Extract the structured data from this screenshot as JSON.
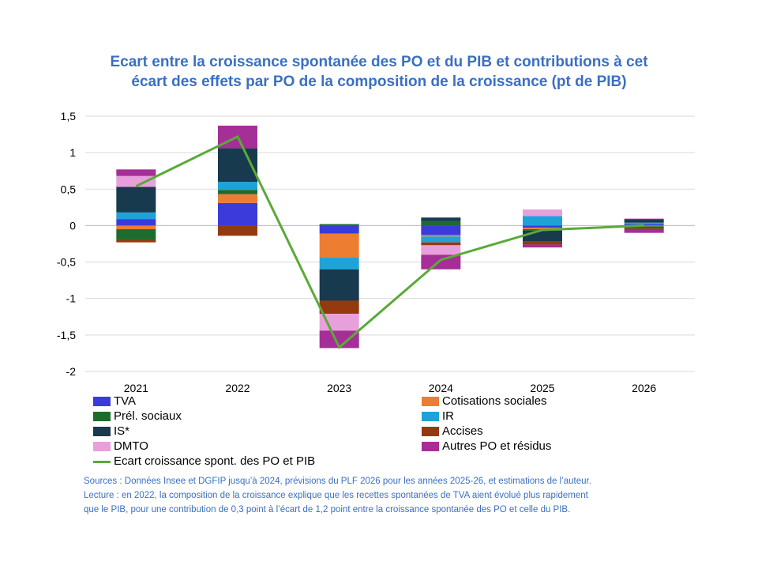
{
  "chart_data": {
    "type": "bar",
    "stacked": true,
    "title_lines": [
      "Ecart entre la croissance spontanée des PO et du PIB et contributions à cet",
      "écart des effets par PO de la composition de la croissance (pt de PIB)"
    ],
    "categories": [
      "2021",
      "2022",
      "2023",
      "2024",
      "2025",
      "2026"
    ],
    "ylim": [
      -2,
      1.5
    ],
    "yticks": [
      1.5,
      1,
      0.5,
      0,
      -0.5,
      -1,
      -1.5,
      -2
    ],
    "ytick_labels": [
      "1,5",
      "1",
      "0,5",
      "0",
      "-0,5",
      "-1",
      "-1,5",
      "-2"
    ],
    "grid": true,
    "legend_position": "bottom",
    "series": [
      {
        "name": "TVA",
        "color": "#3b3bdc",
        "values": [
          0.09,
          0.31,
          -0.11,
          -0.13,
          -0.03,
          0.02
        ]
      },
      {
        "name": "Cotisations sociales",
        "color": "#ed7d31",
        "values": [
          -0.05,
          0.12,
          -0.33,
          -0.02,
          -0.02,
          -0.01
        ]
      },
      {
        "name": "Prél. sociaux",
        "color": "#1e6b2e",
        "values": [
          -0.14,
          0.06,
          0.02,
          0.06,
          -0.02,
          -0.03
        ]
      },
      {
        "name": "IR",
        "color": "#1fa2d8",
        "values": [
          0.09,
          0.11,
          -0.16,
          -0.08,
          0.13,
          0.02
        ]
      },
      {
        "name": "IS*",
        "color": "#173a4f",
        "values": [
          0.35,
          0.46,
          -0.43,
          0.05,
          -0.15,
          0.05
        ]
      },
      {
        "name": "Accises",
        "color": "#953a0e",
        "values": [
          -0.04,
          -0.14,
          -0.18,
          -0.04,
          -0.04,
          -0.02
        ]
      },
      {
        "name": "DMTO",
        "color": "#e8a0dc",
        "values": [
          0.15,
          0.0,
          -0.23,
          -0.13,
          0.09,
          0.01
        ]
      },
      {
        "name": "Autres PO et résidus",
        "color": "#a52f96",
        "values": [
          0.09,
          0.31,
          -0.24,
          -0.2,
          -0.04,
          -0.04
        ]
      }
    ],
    "line": {
      "name": "Ecart croissance spont. des PO et  PIB",
      "color": "#5aaa38",
      "values": [
        0.54,
        1.22,
        -1.67,
        -0.47,
        -0.06,
        0.0
      ]
    }
  },
  "notes": [
    "Sources : Données Insee et DGFIP jusqu’à 2024, prévisions du PLF 2026 pour les années 2025-26, et estimations de l’auteur.",
    "Lecture : en 2022, la composition de la croissance explique que les recettes spontanées de TVA aient évolué plus rapidement",
    "que le PIB, pour une contribution de 0,3 point à l’écart de 1,2 point entre la croissance spontanée des PO et celle du PIB."
  ]
}
